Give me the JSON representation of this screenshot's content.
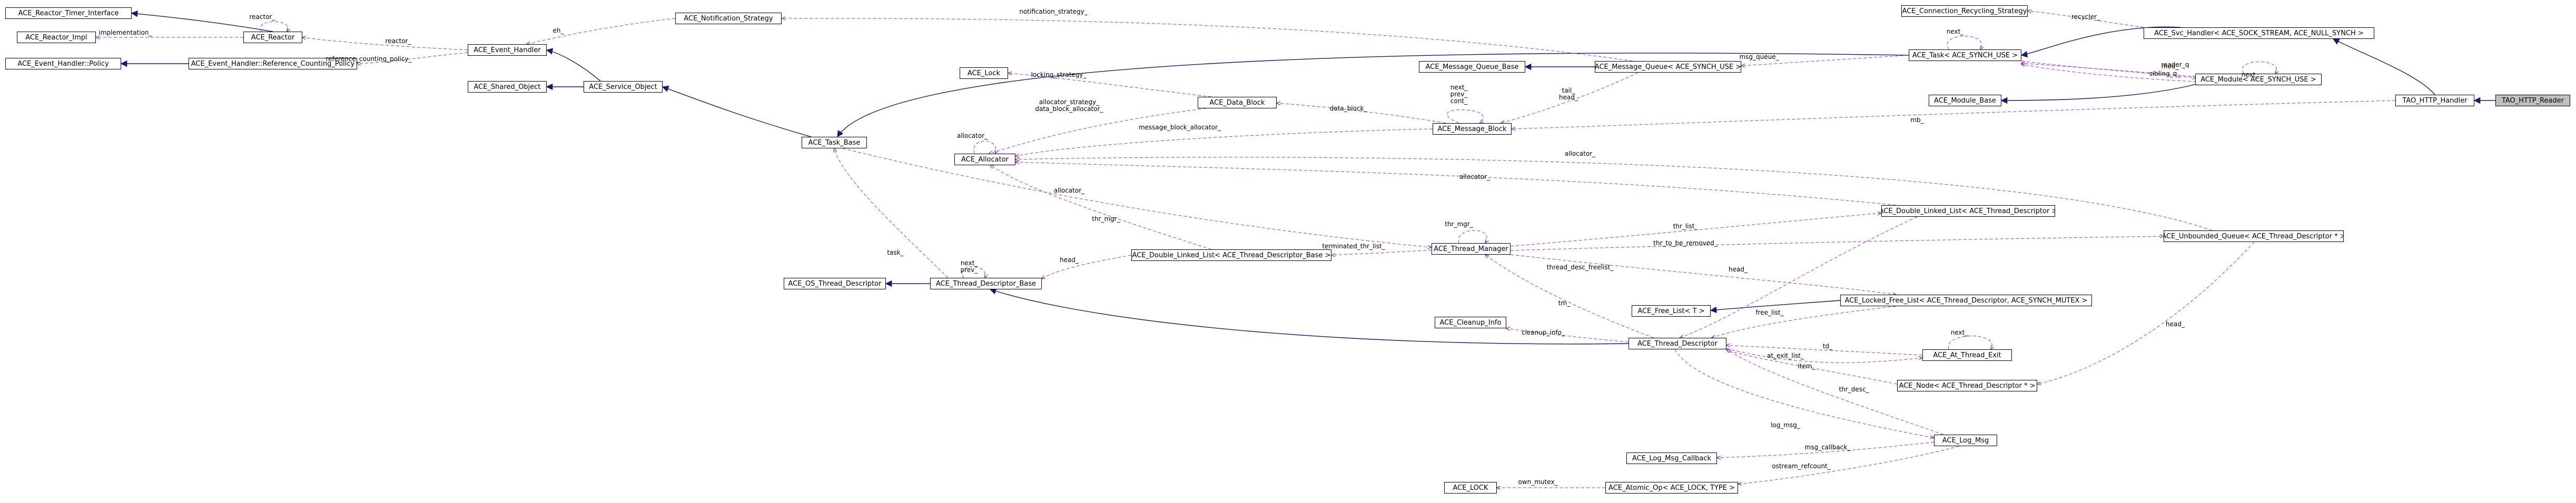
{
  "nodes": {
    "reactor_timer": "ACE_Reactor_Timer_Interface",
    "reactor_impl": "ACE_Reactor_Impl",
    "event_handler_policy": "ACE_Event_Handler::Policy",
    "reactor": "ACE_Reactor",
    "ref_counting_policy": "ACE_Event_Handler::Reference_Counting_Policy",
    "event_handler": "ACE_Event_Handler",
    "notification_strategy": "ACE_Notification_Strategy",
    "shared_object": "ACE_Shared_Object",
    "service_object": "ACE_Service_Object",
    "ace_lock": "ACE_Lock",
    "data_block": "ACE_Data_Block",
    "message_queue_base": "ACE_Message_Queue_Base",
    "message_queue": "ACE_Message_Queue< ACE_SYNCH_USE >",
    "message_block": "ACE_Message_Block",
    "task_base": "ACE_Task_Base",
    "allocator": "ACE_Allocator",
    "task": "ACE_Task< ACE_SYNCH_USE >",
    "module_base": "ACE_Module_Base",
    "module": "ACE_Module< ACE_SYNCH_USE >",
    "conn_recycling": "ACE_Connection_Recycling_Strategy",
    "svc_handler": "ACE_Svc_Handler< ACE_SOCK_STREAM, ACE_NULL_SYNCH >",
    "tao_http_handler": "TAO_HTTP_Handler",
    "tao_http_reader": "TAO_HTTP_Reader",
    "dll_thread_descriptor": "ACE_Double_Linked_List< ACE_Thread_Descriptor >",
    "unbounded_queue": "ACE_Unbounded_Queue< ACE_Thread_Descriptor * >",
    "thread_manager": "ACE_Thread_Manager",
    "dll_thread_descriptor_base": "ACE_Double_Linked_List< ACE_Thread_Descriptor_Base >",
    "os_thread_descriptor": "ACE_OS_Thread_Descriptor",
    "thread_descriptor_base": "ACE_Thread_Descriptor_Base",
    "free_list": "ACE_Free_List< T >",
    "locked_free_list": "ACE_Locked_Free_List< ACE_Thread_Descriptor, ACE_SYNCH_MUTEX >",
    "cleanup_info": "ACE_Cleanup_Info",
    "thread_descriptor": "ACE_Thread_Descriptor",
    "at_thread_exit": "ACE_At_Thread_Exit",
    "node_thread_descriptor": "ACE_Node< ACE_Thread_Descriptor * >",
    "log_msg_callback": "ACE_Log_Msg_Callback",
    "log_msg": "ACE_Log_Msg",
    "ace_lock_type": "ACE_LOCK",
    "atomic_op": "ACE_Atomic_Op< ACE_LOCK, TYPE >"
  },
  "edge_labels": {
    "reactor_self": "reactor_",
    "implementation": "implementation_",
    "reactor_eh": "reactor_",
    "ref_policy": "reference_counting_policy_",
    "eh": "eh_",
    "notification_strategy": "notification_strategy_",
    "recycler": "recycler_",
    "locking_strategy": "locking_strategy_",
    "allocator_strategy": "allocator_strategy_\ndata_block_allocator_",
    "data_block": "data_block_",
    "next_prev_cont": "next_\nprev_\ncont_",
    "tail_head": "tail_\nhead_",
    "msg_queue": "msg_queue_",
    "task_next": "next_",
    "mod_next": "next_",
    "mod": "mod_",
    "reader_q": "reader_q",
    "sibling": "sibling_q_",
    "mb_allocator": "message_block_allocator_",
    "allocator_self": "allocator_",
    "mb": "mb_",
    "allocator_uq": "allocator_",
    "allocator_dll": "allocator_",
    "allocator_tdb": "allocator_",
    "thr_mgr_top": "thr_mgr_",
    "thr_mgr_tm": "thr_mgr_",
    "thr_list": "thr_list_",
    "thr_to_be_removed": "thr_to_be_removed_",
    "terminated": "terminated_thr_list_",
    "task": "task_",
    "next_prev": "next_\nprev_",
    "head_tdb": "head_",
    "head_td": "head_",
    "thread_desc_freelist": "thread_desc_freelist_",
    "free_list": "free_list_",
    "tm": "tm_",
    "cleanup_info": "cleanup_info_",
    "td": "td_",
    "at_exit_list": "at_exit_list_",
    "at_next": "next_",
    "head_node": "head_",
    "item": "item_",
    "thr_desc": "thr_desc_",
    "log_msg": "log_msg_",
    "msg_callback": "msg_callback_",
    "ostream_refcount": "ostream_refcount_",
    "own_mutex": "own_mutex_"
  },
  "colors": {
    "inheritance": "#191970",
    "usage": "#9a32cd",
    "label": "#000000",
    "node_border": "#000000",
    "highlight": "#bfbfbf"
  }
}
